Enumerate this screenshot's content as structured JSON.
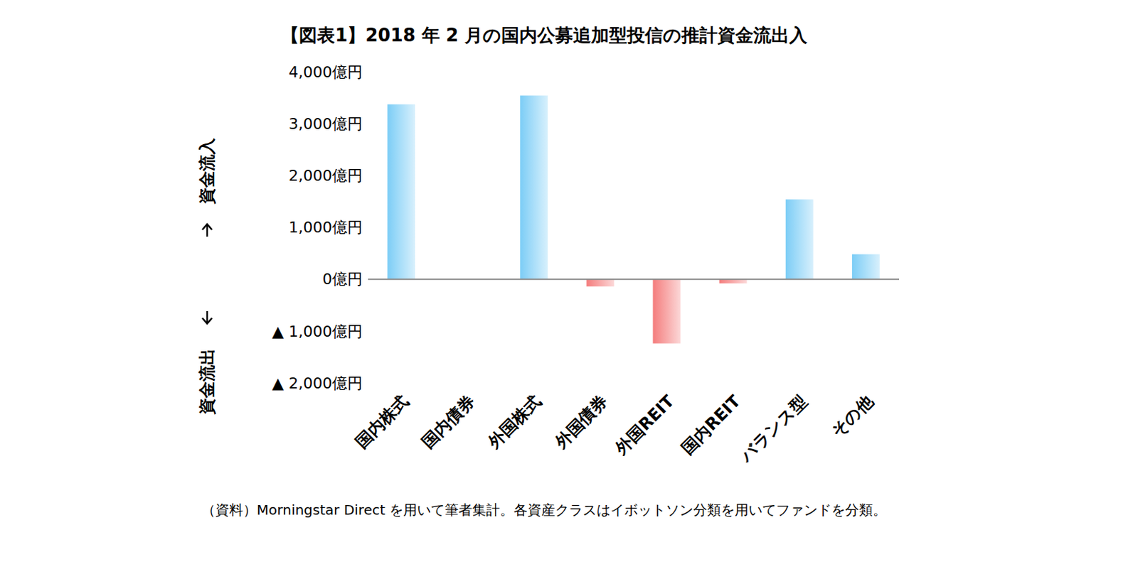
{
  "chart_data": {
    "type": "bar",
    "title": "【図表1】2018 年 2 月の国内公募追加型投信の推計資金流出入",
    "categories": [
      "国内株式",
      "国内債券",
      "外国株式",
      "外国債券",
      "外国REIT",
      "国内REIT",
      "バランス型",
      "その他"
    ],
    "values": [
      3370,
      0,
      3540,
      -140,
      -1240,
      -80,
      1540,
      480
    ],
    "colors": [
      "#7ccdf6",
      "#7ccdf6",
      "#7ccdf6",
      "#f47c7c",
      "#f47c7c",
      "#f47c7c",
      "#7ccdf6",
      "#7ccdf6"
    ],
    "ylim": [
      -2000,
      4000
    ],
    "yticks": [
      {
        "value": -2000,
        "label": "▲ 2,000億円"
      },
      {
        "value": -1000,
        "label": "▲ 1,000億円"
      },
      {
        "value": 0,
        "label": "0億円"
      },
      {
        "value": 1000,
        "label": "1,000億円"
      },
      {
        "value": 2000,
        "label": "2,000億円"
      },
      {
        "value": 3000,
        "label": "3,000億円"
      },
      {
        "value": 4000,
        "label": "4,000億円"
      }
    ],
    "grid": false,
    "annotations": [
      "資金流入",
      "資金流出"
    ],
    "note": "（資料）Morningstar Direct を用いて筆者集計。各資産クラスはイボットソン分類を用いてファンドを分類。"
  }
}
